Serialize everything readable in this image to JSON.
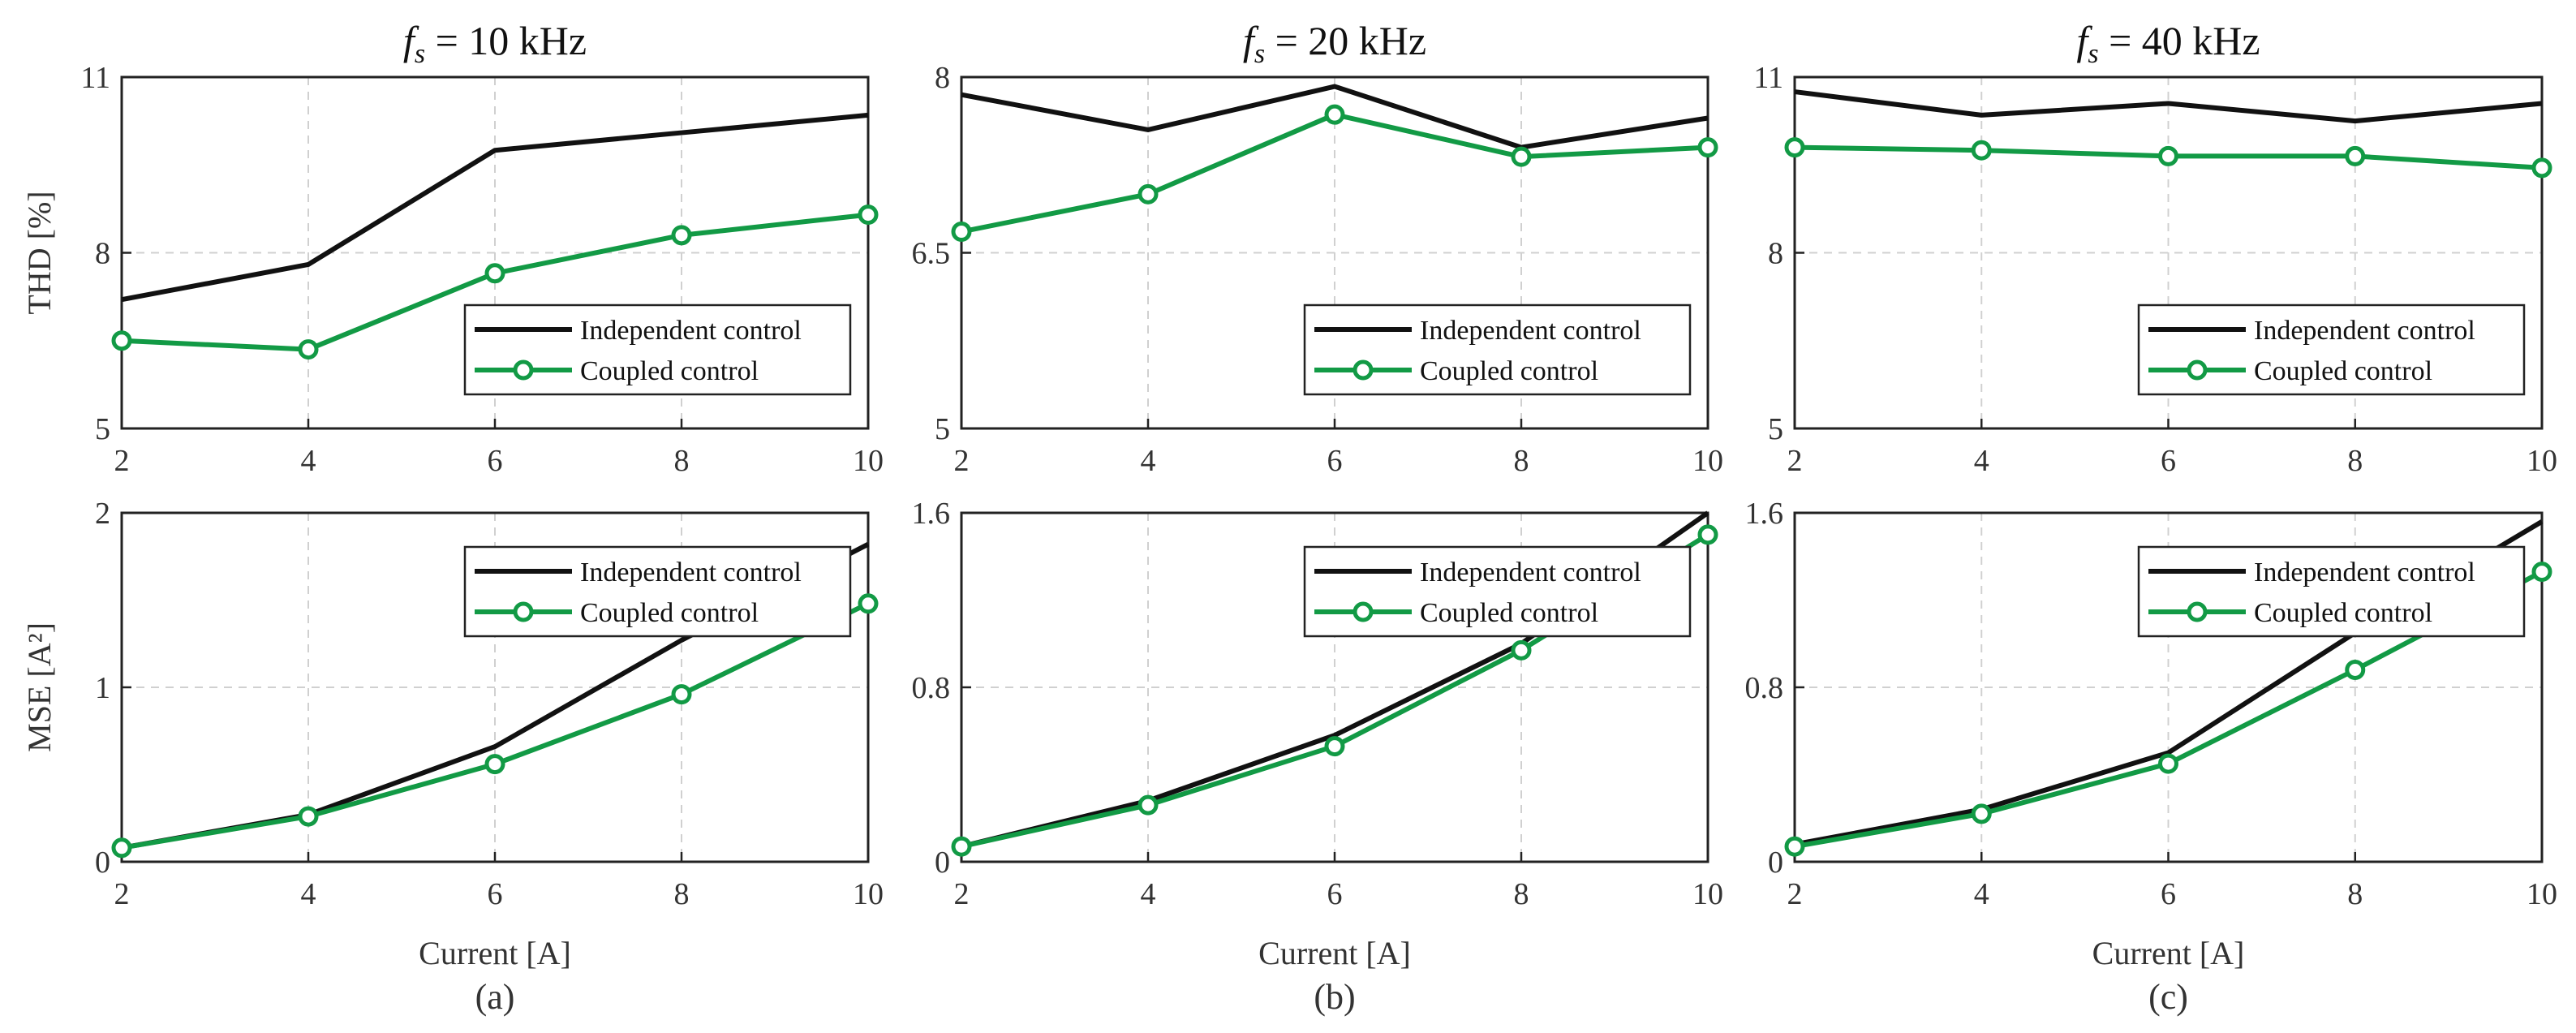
{
  "colors": {
    "independent": "#111111",
    "coupled": "#129a45"
  },
  "chart_data": [
    {
      "type": "line",
      "title": "f_s = 10 kHz",
      "title_value": "10 kHz",
      "xlabel": "",
      "ylabel": "THD [%]",
      "x": [
        2,
        4,
        6,
        8,
        10
      ],
      "xlim": [
        2,
        10
      ],
      "xticks": [
        "2",
        "4",
        "6",
        "8",
        "10"
      ],
      "ylim": [
        5,
        11
      ],
      "yticks": [
        "5",
        "8",
        "11"
      ],
      "ytick_values": [
        5,
        8,
        11
      ],
      "grid": true,
      "legend": "bottom-right",
      "series": [
        {
          "name": "Independent control",
          "values": [
            7.2,
            7.8,
            9.75,
            10.05,
            10.35
          ]
        },
        {
          "name": "Coupled control",
          "values": [
            6.5,
            6.35,
            7.65,
            8.3,
            8.65
          ]
        }
      ]
    },
    {
      "type": "line",
      "title": "f_s = 20 kHz",
      "title_value": "20 kHz",
      "xlabel": "",
      "ylabel": "",
      "x": [
        2,
        4,
        6,
        8,
        10
      ],
      "xlim": [
        2,
        10
      ],
      "xticks": [
        "2",
        "4",
        "6",
        "8",
        "10"
      ],
      "ylim": [
        5,
        8
      ],
      "yticks": [
        "5",
        "6.5",
        "8"
      ],
      "ytick_values": [
        5,
        6.5,
        8
      ],
      "grid": true,
      "legend": "bottom-right",
      "series": [
        {
          "name": "Independent control",
          "values": [
            7.85,
            7.55,
            7.92,
            7.4,
            7.65
          ]
        },
        {
          "name": "Coupled control",
          "values": [
            6.68,
            7.0,
            7.68,
            7.32,
            7.4
          ]
        }
      ]
    },
    {
      "type": "line",
      "title": "f_s = 40 kHz",
      "title_value": "40 kHz",
      "xlabel": "",
      "ylabel": "",
      "x": [
        2,
        4,
        6,
        8,
        10
      ],
      "xlim": [
        2,
        10
      ],
      "xticks": [
        "2",
        "4",
        "6",
        "8",
        "10"
      ],
      "ylim": [
        5,
        11
      ],
      "yticks": [
        "5",
        "8",
        "11"
      ],
      "ytick_values": [
        5,
        8,
        11
      ],
      "grid": true,
      "legend": "bottom-right",
      "series": [
        {
          "name": "Independent control",
          "values": [
            10.75,
            10.35,
            10.55,
            10.25,
            10.55
          ]
        },
        {
          "name": "Coupled control",
          "values": [
            9.8,
            9.75,
            9.65,
            9.65,
            9.45
          ]
        }
      ]
    },
    {
      "type": "line",
      "title": "",
      "title_value": "",
      "xlabel": "Current [A]",
      "ylabel": "MSE [A²]",
      "panel_label": "(a)",
      "x": [
        2,
        4,
        6,
        8,
        10
      ],
      "xlim": [
        2,
        10
      ],
      "xticks": [
        "2",
        "4",
        "6",
        "8",
        "10"
      ],
      "ylim": [
        0,
        2
      ],
      "yticks": [
        "0",
        "1",
        "2"
      ],
      "ytick_values": [
        0,
        1,
        2
      ],
      "grid": true,
      "legend": "top-right",
      "series": [
        {
          "name": "Independent control",
          "values": [
            0.08,
            0.27,
            0.66,
            1.27,
            1.82
          ]
        },
        {
          "name": "Coupled control",
          "values": [
            0.08,
            0.26,
            0.56,
            0.96,
            1.48
          ]
        }
      ]
    },
    {
      "type": "line",
      "title": "",
      "title_value": "",
      "xlabel": "Current [A]",
      "ylabel": "",
      "panel_label": "(b)",
      "x": [
        2,
        4,
        6,
        8,
        10
      ],
      "xlim": [
        2,
        10
      ],
      "xticks": [
        "2",
        "4",
        "6",
        "8",
        "10"
      ],
      "ylim": [
        0,
        1.6
      ],
      "yticks": [
        "0",
        "0.8",
        "1.6"
      ],
      "ytick_values": [
        0,
        0.8,
        1.6
      ],
      "grid": true,
      "legend": "top-right",
      "series": [
        {
          "name": "Independent control",
          "values": [
            0.07,
            0.28,
            0.58,
            1.0,
            1.6
          ]
        },
        {
          "name": "Coupled control",
          "values": [
            0.07,
            0.26,
            0.53,
            0.97,
            1.5
          ]
        }
      ]
    },
    {
      "type": "line",
      "title": "",
      "title_value": "",
      "xlabel": "Current [A]",
      "ylabel": "",
      "panel_label": "(c)",
      "x": [
        2,
        4,
        6,
        8,
        10
      ],
      "xlim": [
        2,
        10
      ],
      "xticks": [
        "2",
        "4",
        "6",
        "8",
        "10"
      ],
      "ylim": [
        0,
        1.6
      ],
      "yticks": [
        "0",
        "0.8",
        "1.6"
      ],
      "ytick_values": [
        0,
        0.8,
        1.6
      ],
      "grid": true,
      "legend": "top-right",
      "series": [
        {
          "name": "Independent control",
          "values": [
            0.08,
            0.24,
            0.5,
            1.05,
            1.56
          ]
        },
        {
          "name": "Coupled control",
          "values": [
            0.07,
            0.22,
            0.45,
            0.88,
            1.33
          ]
        }
      ]
    }
  ]
}
